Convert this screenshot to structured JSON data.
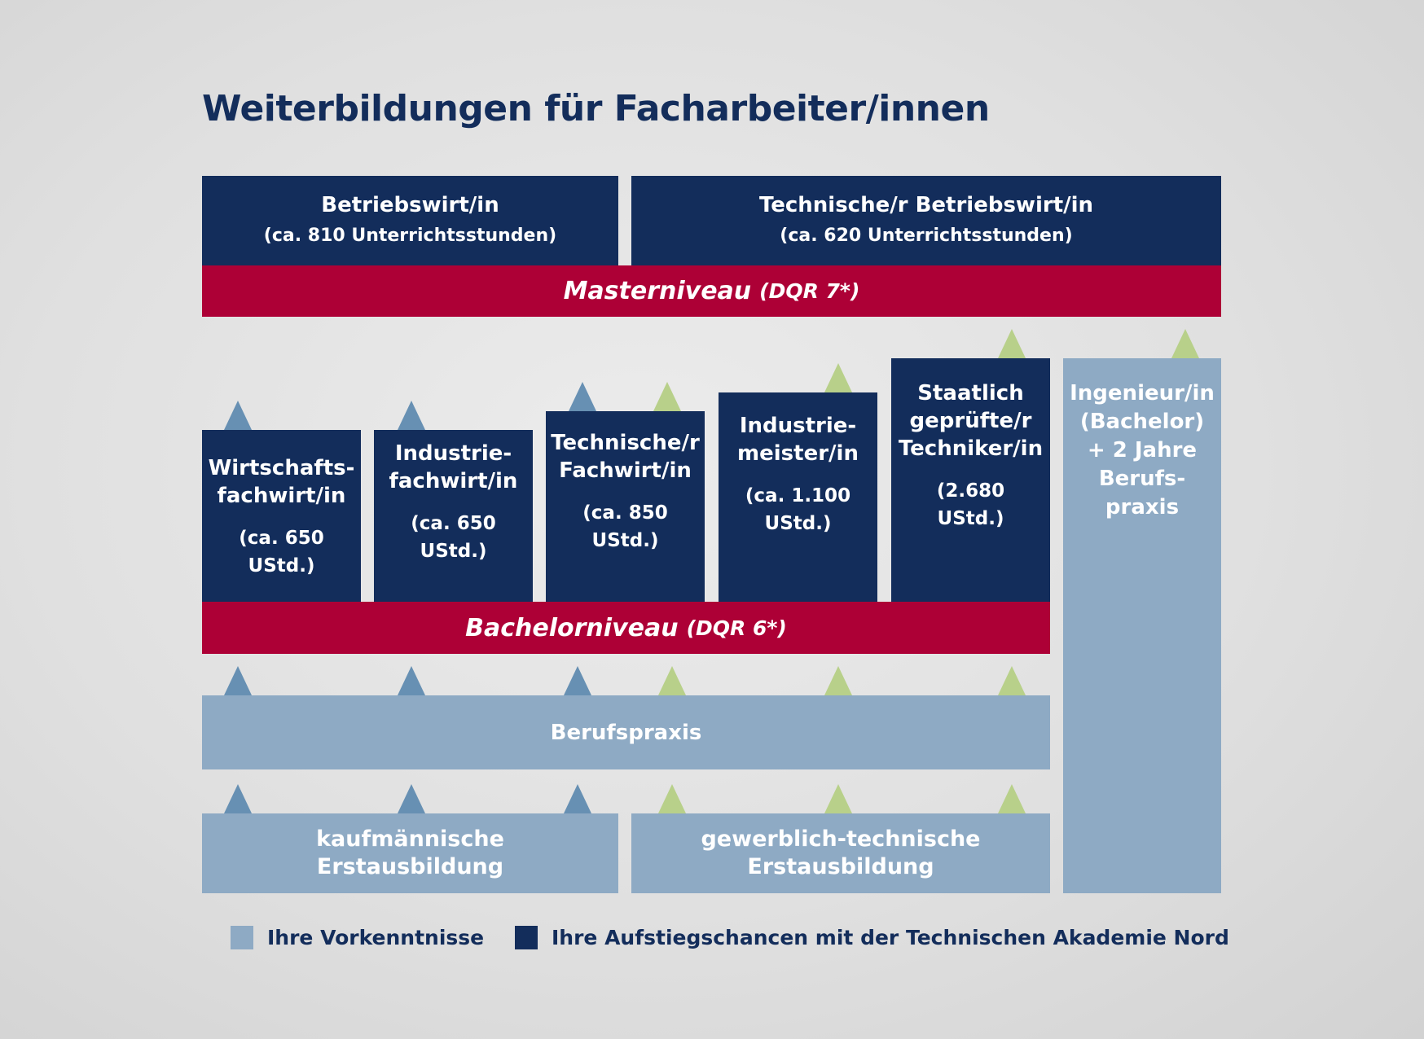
{
  "title": "Weiterbildungen für Facharbeiter/innen",
  "colors": {
    "navy": "#132d5b",
    "red": "#ad0036",
    "light_blue": "#8eaac4",
    "triangle_blue": "#6790b3",
    "triangle_green": "#b8d08a"
  },
  "master": {
    "boxes": [
      {
        "name": "Betriebswirt/in",
        "hours": "(ca. 810 Unterrichtsstunden)"
      },
      {
        "name": "Technische/r Betriebswirt/in",
        "hours": "(ca. 620 Unterrichtsstunden)"
      }
    ],
    "level": "Masterniveau",
    "dqr": "(DQR 7*)"
  },
  "bachelor": {
    "columns": [
      {
        "line1": "Wirtschafts-",
        "line2": "fachwirt/in",
        "hours1": "(ca. 650",
        "hours2": "UStd.)"
      },
      {
        "line1": "Industrie-",
        "line2": "fachwirt/in",
        "hours1": "(ca. 650",
        "hours2": "UStd.)"
      },
      {
        "line1": "Technische/r",
        "line2": "Fachwirt/in",
        "hours1": "(ca. 850",
        "hours2": "UStd.)"
      },
      {
        "line1": "Industrie-",
        "line2": "meister/in",
        "hours1": "(ca. 1.100",
        "hours2": "UStd.)"
      },
      {
        "line1": "Staatlich",
        "line2": "geprüfte/r",
        "line3": "Techniker/in",
        "hours1": "(2.680",
        "hours2": "UStd.)"
      }
    ],
    "level": "Bachelorniveau",
    "dqr": "(DQR 6*)"
  },
  "engineer": {
    "lines": [
      "Ingenieur/in",
      "(Bachelor)",
      "+ 2 Jahre",
      "Berufs-",
      "praxis"
    ]
  },
  "berufspraxis": "Berufspraxis",
  "basics": [
    {
      "line1": "kaufmännische",
      "line2": "Erstausbildung"
    },
    {
      "line1": "gewerblich-technische",
      "line2": "Erstausbildung"
    }
  ],
  "legend": [
    {
      "label": "Ihre Vorkenntnisse",
      "color": "#8eaac4"
    },
    {
      "label": "Ihre Aufstiegschancen mit der Technischen Akademie Nord",
      "color": "#132d5b"
    }
  ]
}
